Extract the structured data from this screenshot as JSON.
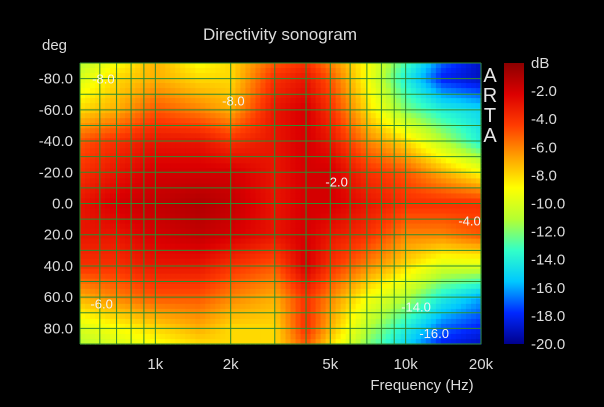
{
  "chart_data": {
    "type": "heatmap",
    "title": "Directivity sonogram",
    "xlabel": "Frequency (Hz)",
    "ylabel": "deg",
    "colorbar_label": "dB",
    "watermark": [
      "A",
      "R",
      "T",
      "A"
    ],
    "x_scale": "log",
    "xlim": [
      500,
      20000
    ],
    "ylim": [
      -90,
      90
    ],
    "x_ticks": [
      {
        "value": 1000,
        "label": "1k"
      },
      {
        "value": 2000,
        "label": "2k"
      },
      {
        "value": 5000,
        "label": "5k"
      },
      {
        "value": 10000,
        "label": "10k"
      },
      {
        "value": 20000,
        "label": "20k"
      }
    ],
    "y_ticks": [
      {
        "value": -80,
        "label": "-80.0"
      },
      {
        "value": -60,
        "label": "-60.0"
      },
      {
        "value": -40,
        "label": "-40.0"
      },
      {
        "value": -20,
        "label": "-20.0"
      },
      {
        "value": 0,
        "label": "0.0"
      },
      {
        "value": 20,
        "label": "20.0"
      },
      {
        "value": 40,
        "label": "40.0"
      },
      {
        "value": 60,
        "label": "60.0"
      },
      {
        "value": 80,
        "label": "80.0"
      }
    ],
    "grid_freqs": [
      500,
      600,
      700,
      800,
      900,
      1000,
      2000,
      3000,
      4000,
      5000,
      6000,
      7000,
      8000,
      9000,
      10000,
      20000
    ],
    "grid_angles": [
      -90,
      -80,
      -70,
      -60,
      -50,
      -40,
      -30,
      -20,
      -10,
      0,
      10,
      20,
      30,
      40,
      50,
      60,
      70,
      80,
      90
    ],
    "colorbar_range": [
      -20.0,
      0.0
    ],
    "colorbar_ticks": [
      "-2.0",
      "-4.0",
      "-6.0",
      "-8.0",
      "-10.0",
      "-12.0",
      "-14.0",
      "-16.0",
      "-18.0",
      "-20.0"
    ],
    "colors": {
      "background": "#000000",
      "grid": "#2e8b2e",
      "text": "#dcdcdc",
      "colormap": [
        "#00008c",
        "#0028ff",
        "#00c8ff",
        "#32ffc8",
        "#b4ff32",
        "#ffff00",
        "#ffa000",
        "#ff3c00",
        "#dc0000",
        "#8c0000"
      ]
    },
    "annotations": [
      {
        "text": "-8.0",
        "freq": 620,
        "angle": -80
      },
      {
        "text": "-8.0",
        "freq": 2050,
        "angle": -66
      },
      {
        "text": "-2.0",
        "freq": 5300,
        "angle": -14
      },
      {
        "text": "-4.0",
        "freq": 18000,
        "angle": 11
      },
      {
        "text": "-6.0",
        "freq": 610,
        "angle": 64
      },
      {
        "text": "-14.0",
        "freq": 11000,
        "angle": 66
      },
      {
        "text": "-16.0",
        "freq": 13000,
        "angle": 83
      }
    ],
    "level_map": {
      "unit": "dB",
      "freqs": [
        500,
        700,
        1000,
        1500,
        2000,
        3000,
        4000,
        5000,
        7000,
        10000,
        14000,
        20000
      ],
      "angles": [
        -90,
        -80,
        -60,
        -40,
        -20,
        0,
        20,
        40,
        60,
        80,
        90
      ],
      "values": [
        [
          -11,
          -9,
          -7,
          -9,
          -8,
          -5,
          -4,
          -6,
          -9,
          -13,
          -17,
          -19
        ],
        [
          -10,
          -8,
          -7,
          -8,
          -8,
          -4,
          -3,
          -5,
          -9,
          -14,
          -18,
          -19
        ],
        [
          -8,
          -7,
          -5,
          -6,
          -7,
          -3,
          -2,
          -4,
          -8,
          -12,
          -14,
          -15
        ],
        [
          -5,
          -4,
          -3,
          -3,
          -4,
          -3,
          -2,
          -3,
          -6,
          -8,
          -11,
          -14
        ],
        [
          -4,
          -3,
          -2,
          -2,
          -2,
          -3,
          -2,
          -2,
          -4,
          -5,
          -7,
          -9
        ],
        [
          -3,
          -2,
          -1.5,
          -1,
          -1.5,
          -3,
          -2,
          -2,
          -3,
          -4,
          -4,
          -4
        ],
        [
          -3,
          -3,
          -2,
          -1.5,
          -2,
          -3,
          -2,
          -3,
          -4,
          -6,
          -6,
          -5
        ],
        [
          -4,
          -4,
          -3,
          -3,
          -4,
          -5,
          -2,
          -4,
          -6,
          -8,
          -10,
          -10
        ],
        [
          -7,
          -6,
          -5,
          -5,
          -6,
          -7,
          -4,
          -6,
          -9,
          -11,
          -14,
          -16
        ],
        [
          -10,
          -9,
          -8,
          -7,
          -8,
          -8,
          -4,
          -7,
          -11,
          -14,
          -17,
          -18
        ],
        [
          -11,
          -10,
          -9,
          -8,
          -8,
          -8,
          -5,
          -8,
          -12,
          -15,
          -18,
          -19
        ]
      ]
    }
  }
}
